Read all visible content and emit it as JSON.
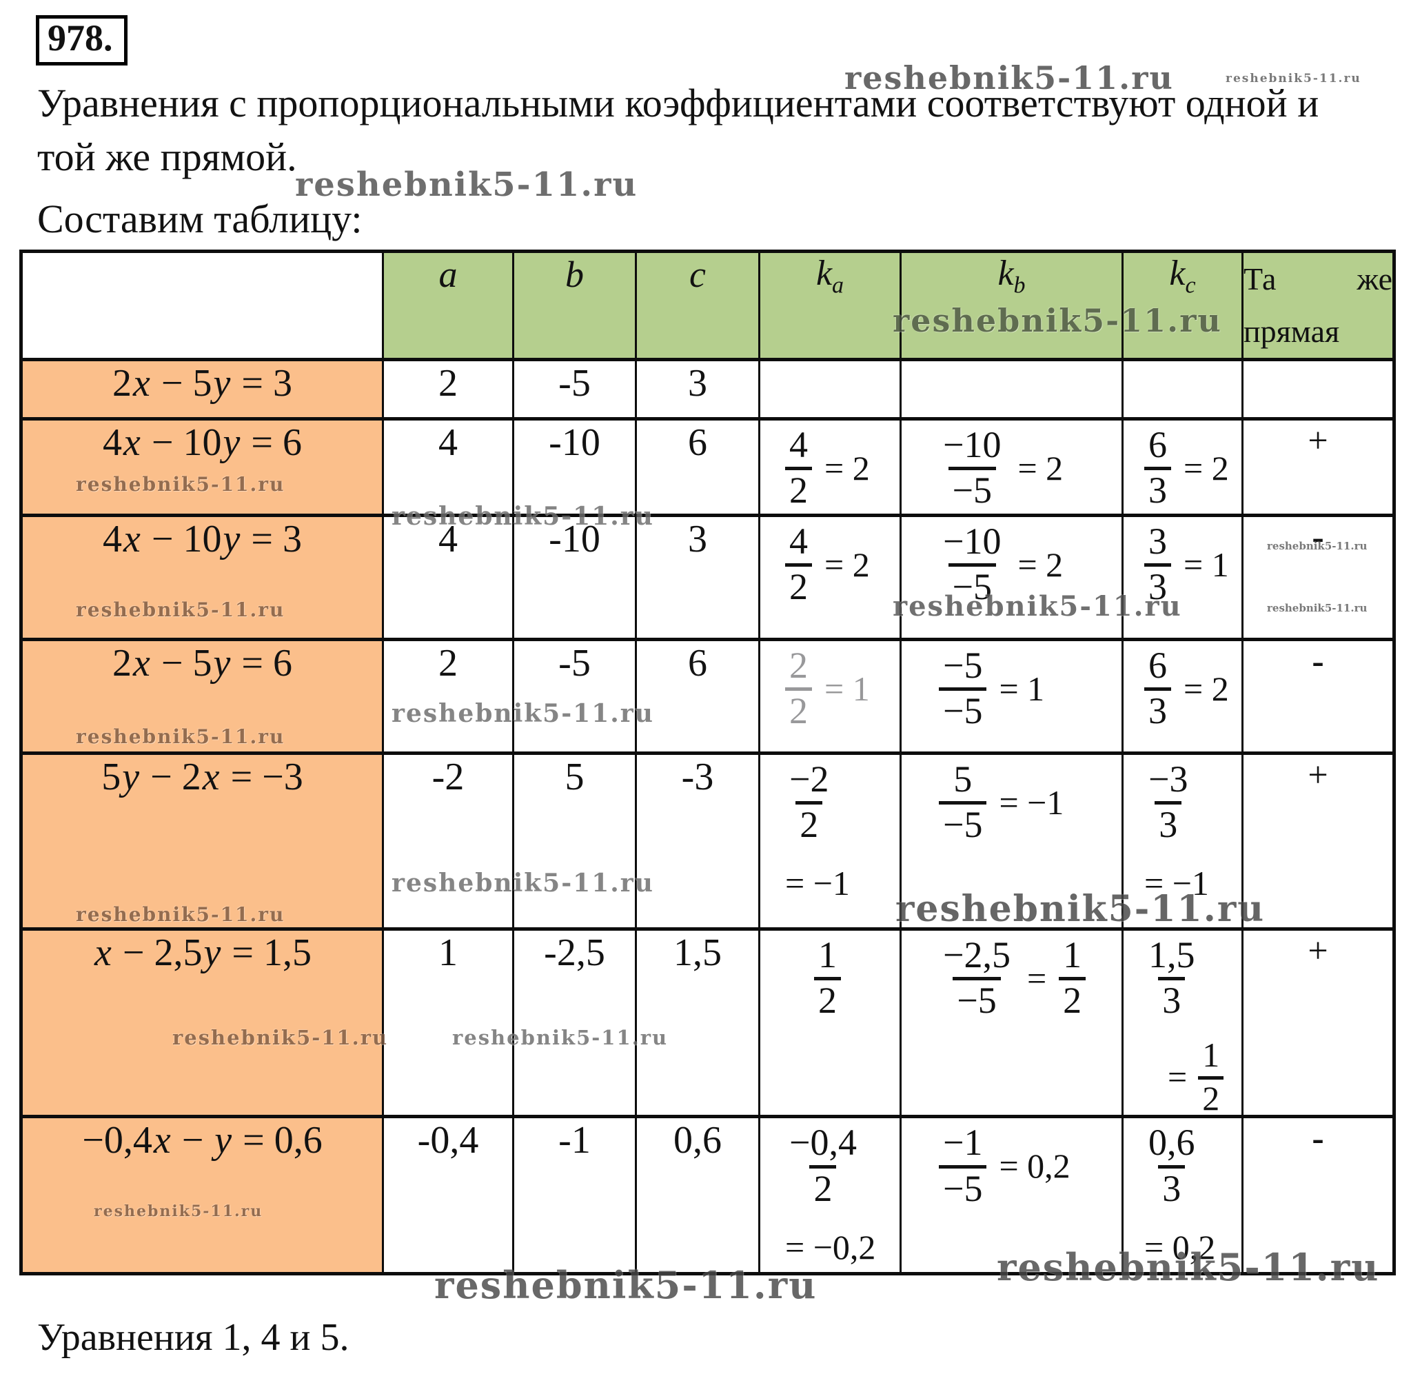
{
  "watermark": "reshebnik5-11.ru",
  "header": {
    "problem_number": "978.",
    "intro_line1": "Уравнения с пропорциональными коэффициентами соответствуют одной и",
    "intro_line2": "той же прямой.",
    "intro_line3": "Составим таблицу:"
  },
  "table": {
    "col_headers": {
      "a": "a",
      "b": "b",
      "c": "c",
      "k_base": "k",
      "ka_sub": "a",
      "kb_sub": "b",
      "kc_sub": "c",
      "same_word1": "Та",
      "same_word2": "же",
      "same_line2": "прямая"
    },
    "rows": [
      {
        "eq": "2x − 5y = 3",
        "a": "2",
        "b": "-5",
        "c": "3",
        "ka": null,
        "kb": null,
        "kc": null,
        "same": ""
      },
      {
        "eq": "4x − 10y = 6",
        "a": "4",
        "b": "-10",
        "c": "6",
        "ka": {
          "num": "4",
          "den": "2",
          "after": "= 2"
        },
        "kb": {
          "num": "−10",
          "den": "−5",
          "after": "= 2"
        },
        "kc": {
          "num": "6",
          "den": "3",
          "after": "= 2"
        },
        "same": "+"
      },
      {
        "eq": "4x − 10y = 3",
        "a": "4",
        "b": "-10",
        "c": "3",
        "ka": {
          "num": "4",
          "den": "2",
          "after": "= 2"
        },
        "kb": {
          "num": "−10",
          "den": "−5",
          "after": "= 2"
        },
        "kc": {
          "num": "3",
          "den": "3",
          "after": "= 1"
        },
        "same": "-"
      },
      {
        "eq": "2x − 5y = 6",
        "a": "2",
        "b": "-5",
        "c": "6",
        "ka": {
          "num": "2",
          "den": "2",
          "after": "= 1"
        },
        "kb": {
          "num": "−5",
          "den": "−5",
          "after": "= 1"
        },
        "kc": {
          "num": "6",
          "den": "3",
          "after": "= 2"
        },
        "same": "-"
      },
      {
        "eq": "5y − 2x = −3",
        "a": "-2",
        "b": "5",
        "c": "-3",
        "ka": {
          "num": "−2",
          "den": "2",
          "below": "= −1"
        },
        "kb": {
          "num": "5",
          "den": "−5",
          "after": "= −1"
        },
        "kc": {
          "num": "−3",
          "den": "3",
          "below": "= −1"
        },
        "same": "+"
      },
      {
        "eq": "x − 2,5y = 1,5",
        "a": "1",
        "b": "-2,5",
        "c": "1,5",
        "ka": {
          "num": "1",
          "den": "2"
        },
        "kb": {
          "num": "−2,5",
          "den": "−5",
          "after_frac": {
            "num": "1",
            "den": "2"
          }
        },
        "kc": {
          "num": "1,5",
          "den": "3",
          "below_frac": {
            "num": "1",
            "den": "2"
          }
        },
        "same": "+"
      },
      {
        "eq": "−0,4x − y = 0,6",
        "a": "-0,4",
        "b": "-1",
        "c": "0,6",
        "ka": {
          "num": "−0,4",
          "den": "2",
          "below": "= −0,2"
        },
        "kb": {
          "num": "−1",
          "den": "−5",
          "after": "= 0,2"
        },
        "kc": {
          "num": "0,6",
          "den": "3",
          "below": "= 0,2"
        },
        "same": "-"
      }
    ]
  },
  "footer": {
    "conclusion": "Уравнения 1, 4 и 5."
  }
}
